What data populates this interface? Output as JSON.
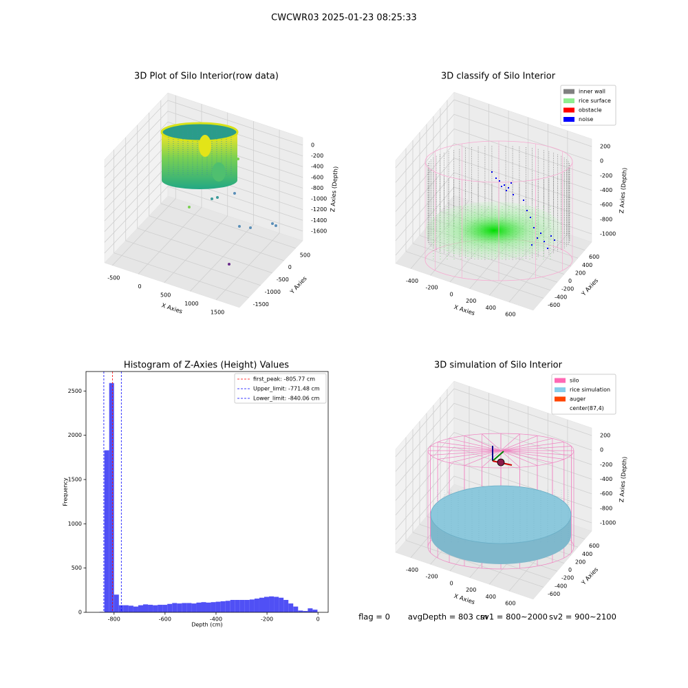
{
  "title": "CWCWR03 2025-01-23 08:25:33",
  "footer": [
    "flag = 0",
    "avgDepth = 803 cm",
    "sv1 = 800~2000",
    "sv2 = 900~2100"
  ],
  "chart_data": [
    {
      "type": "scatter3d",
      "title": "3D Plot of Silo Interior(row data)",
      "xlabel": "X Axies",
      "ylabel": "Y Axies",
      "zlabel": "Z Axies (Depth)",
      "xlim": [
        -650,
        1950
      ],
      "ylim": [
        -1900,
        800
      ],
      "zlim": [
        -1780,
        140
      ],
      "xticks": [
        -500,
        0,
        500,
        1000,
        1500
      ],
      "yticks": [
        -1500,
        -1000,
        -500,
        0,
        500
      ],
      "zticks": [
        -1600,
        -1400,
        -1200,
        -1000,
        -800,
        -600,
        -400,
        -200,
        0
      ],
      "grid": true
    },
    {
      "type": "scatter3d",
      "title": "3D classify of Silo Interior",
      "xlabel": "X Axies",
      "ylabel": "Y Axies",
      "zlabel": "Z Axies (Depth)",
      "xlim": [
        -554,
        846
      ],
      "ylim": [
        -900,
        800
      ],
      "zlim": [
        -1113,
        304
      ],
      "xticks": [
        -400,
        -200,
        0,
        200,
        400,
        600
      ],
      "yticks": [
        -600,
        -400,
        -200,
        0,
        200,
        400,
        600
      ],
      "zticks": [
        -1000,
        -800,
        -600,
        -400,
        -200,
        0,
        200
      ],
      "grid": true,
      "legend": [
        {
          "name": "inner wall",
          "color": "#808080"
        },
        {
          "name": "rice surface",
          "color": "#90ee90"
        },
        {
          "name": "obstacle",
          "color": "#ff0000"
        },
        {
          "name": "noise",
          "color": "#0000ff"
        }
      ],
      "legend_loc": "upper right"
    },
    {
      "type": "histogram",
      "title": "Histogram of Z-Axies (Height) Values",
      "xlabel": "Depth (cm)",
      "ylabel": "Frequency",
      "color": "#5050f5",
      "bins": [
        -857,
        -838,
        -819,
        -800,
        -781,
        -762,
        -743,
        -724,
        -705,
        -686,
        -667,
        -648,
        -629,
        -610,
        -591,
        -572,
        -553,
        -534,
        -515,
        -496,
        -477,
        -458,
        -439,
        -420,
        -401,
        -382,
        -363,
        -344,
        -325,
        -306,
        -287,
        -268,
        -249,
        -230,
        -211,
        -192,
        -173,
        -154,
        -135,
        -116,
        -97,
        -78,
        -59,
        -40,
        -21,
        -2
      ],
      "values": [
        5,
        1830,
        2590,
        200,
        80,
        80,
        75,
        65,
        80,
        90,
        85,
        80,
        85,
        85,
        95,
        105,
        100,
        105,
        105,
        100,
        110,
        115,
        110,
        115,
        120,
        125,
        130,
        140,
        140,
        140,
        140,
        145,
        155,
        165,
        175,
        180,
        175,
        165,
        140,
        100,
        65,
        20,
        15,
        45,
        30
      ],
      "xlim": [
        -910,
        40
      ],
      "ylim": [
        0,
        2720
      ],
      "xticks": [
        -800,
        -600,
        -400,
        -200,
        0
      ],
      "yticks": [
        0,
        500,
        1000,
        1500,
        2000,
        2500
      ],
      "vlines": [
        {
          "name": "first_peak: -805.77 cm",
          "value": -805.77,
          "color": "#ff0000"
        },
        {
          "name": "Upper_limit: -771.48 cm",
          "value": -771.48,
          "color": "#0000ff"
        },
        {
          "name": "Lower_limit: -840.06 cm",
          "value": -840.06,
          "color": "#0000ff"
        }
      ],
      "legend_loc": "upper right"
    },
    {
      "type": "surface3d",
      "title": "3D simulation of Silo Interior",
      "xlabel": "X Axies",
      "ylabel": "Y Axies",
      "zlabel": "Z Axies (Depth)",
      "xlim": [
        -554,
        846
      ],
      "ylim": [
        -900,
        800
      ],
      "zlim": [
        -1113,
        304
      ],
      "xticks": [
        -400,
        -200,
        0,
        200,
        400,
        600
      ],
      "yticks": [
        -600,
        -400,
        -200,
        0,
        200,
        400,
        600
      ],
      "zticks": [
        -1000,
        -800,
        -600,
        -400,
        -200,
        0,
        200
      ],
      "grid": true,
      "legend": [
        {
          "name": "silo",
          "color": "#ff69b4"
        },
        {
          "name": "rice simulation",
          "color": "#87ceeb"
        },
        {
          "name": "auger",
          "color": "#ff4500"
        },
        {
          "name": "center(87,4)",
          "color": "#ffffff"
        }
      ],
      "legend_loc": "upper right"
    }
  ]
}
